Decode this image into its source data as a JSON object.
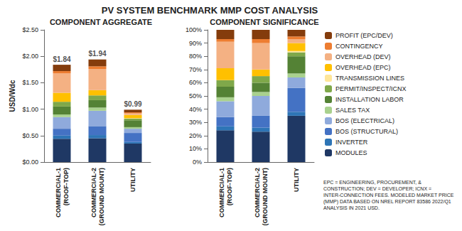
{
  "title": "PV SYSTEM BENCHMARK MMP COST ANALYSIS",
  "note": "EPC = ENGINEERING, PROCUREMENT, & CONSTRUCTION; DEV = DEVELOPER; ICNX = INTER-CONNECTION FEES. MODELED MARKET PRICE (MMP) DATA BASED ON NREL REPORT 83586 2022/Q1 ANALYSIS IN 2021 USD.",
  "chart_data": [
    {
      "type": "bar",
      "title": "COMPONENT AGGREGATE",
      "y_label": "USD/Wdc",
      "stacked": true,
      "grid": false,
      "legend": "right",
      "categories": [
        "COMMERCIAL-1 (ROOF-TOP)",
        "COMMERCIAL-2 (GROUND MOUNT)",
        "UTILITY"
      ],
      "ylim": [
        0,
        2.5
      ],
      "yticks": [
        {
          "value": 0,
          "label": "$0.00"
        },
        {
          "value": 0.5,
          "label": "$0.50"
        },
        {
          "value": 1,
          "label": "$1.00"
        },
        {
          "value": 1.5,
          "label": "$1.50"
        },
        {
          "value": 2,
          "label": "$2.00"
        },
        {
          "value": 2.5,
          "label": "$2.50"
        }
      ],
      "totals": [
        1.84,
        1.94,
        0.99
      ],
      "total_labels": [
        "$1.84",
        "$1.94",
        "$0.99"
      ],
      "series": [
        {
          "name": "MODULES",
          "color": "#1f3864",
          "values": [
            0.44,
            0.45,
            0.35
          ]
        },
        {
          "name": "INVERTER",
          "color": "#2e75b6",
          "values": [
            0.06,
            0.06,
            0.03
          ]
        },
        {
          "name": "BOS (STRUCTURAL)",
          "color": "#4472c4",
          "values": [
            0.13,
            0.17,
            0.17
          ]
        },
        {
          "name": "BOS (ELECTRICAL)",
          "color": "#8faadc",
          "values": [
            0.22,
            0.29,
            0.08
          ]
        },
        {
          "name": "SALES TAX",
          "color": "#a9d18e",
          "values": [
            0.05,
            0.06,
            0.03
          ]
        },
        {
          "name": "INSTALLATION LABOR",
          "color": "#548235",
          "values": [
            0.15,
            0.14,
            0.13
          ]
        },
        {
          "name": "PERMIT/INSPECT/ICNX",
          "color": "#7fa84a",
          "values": [
            0.09,
            0.09,
            0.03
          ]
        },
        {
          "name": "TRANSMISSION LINES",
          "color": "#ffe699",
          "values": [
            0,
            0,
            0.01
          ]
        },
        {
          "name": "OVERHEAD (EPC)",
          "color": "#ffc000",
          "values": [
            0.17,
            0.1,
            0.06
          ]
        },
        {
          "name": "OVERHEAD (DEV)",
          "color": "#f4b183",
          "values": [
            0.37,
            0.4,
            0.03
          ]
        },
        {
          "name": "CONTINGENCY",
          "color": "#ed7d31",
          "values": [
            0.04,
            0.05,
            0.02
          ]
        },
        {
          "name": "PROFIT (EPC/DEV)",
          "color": "#843c0c",
          "values": [
            0.12,
            0.13,
            0.05
          ]
        }
      ]
    },
    {
      "type": "bar",
      "title": "COMPONENT SIGNIFICANCE",
      "stacked": true,
      "grid": false,
      "legend": "right",
      "categories": [
        "COMMERCIAL-1 (ROOF-TOP)",
        "COMMERCIAL-2 (GROUND MOUNT)",
        "UTILITY"
      ],
      "ylim": [
        0,
        100
      ],
      "yticks": [
        {
          "value": 0,
          "label": "0%"
        },
        {
          "value": 10,
          "label": "10%"
        },
        {
          "value": 20,
          "label": "20%"
        },
        {
          "value": 30,
          "label": "30%"
        },
        {
          "value": 40,
          "label": "40%"
        },
        {
          "value": 50,
          "label": "50%"
        },
        {
          "value": 60,
          "label": "60%"
        },
        {
          "value": 70,
          "label": "70%"
        },
        {
          "value": 80,
          "label": "80%"
        },
        {
          "value": 90,
          "label": "90%"
        },
        {
          "value": 100,
          "label": "100%"
        }
      ],
      "series": [
        {
          "name": "MODULES",
          "color": "#1f3864",
          "values": [
            24,
            23,
            35
          ]
        },
        {
          "name": "INVERTER",
          "color": "#2e75b6",
          "values": [
            3,
            3,
            3
          ]
        },
        {
          "name": "BOS (STRUCTURAL)",
          "color": "#4472c4",
          "values": [
            7,
            9,
            18
          ]
        },
        {
          "name": "BOS (ELECTRICAL)",
          "color": "#8faadc",
          "values": [
            12,
            15,
            8
          ]
        },
        {
          "name": "SALES TAX",
          "color": "#a9d18e",
          "values": [
            3,
            3,
            3
          ]
        },
        {
          "name": "INSTALLATION LABOR",
          "color": "#548235",
          "values": [
            8,
            7,
            13
          ]
        },
        {
          "name": "PERMIT/INSPECT/ICNX",
          "color": "#7fa84a",
          "values": [
            5,
            5,
            3
          ]
        },
        {
          "name": "TRANSMISSION LINES",
          "color": "#ffe699",
          "values": [
            0,
            0,
            1
          ]
        },
        {
          "name": "OVERHEAD (EPC)",
          "color": "#ffc000",
          "values": [
            9,
            5,
            6
          ]
        },
        {
          "name": "OVERHEAD (DEV)",
          "color": "#f4b183",
          "values": [
            20,
            20,
            3
          ]
        },
        {
          "name": "CONTINGENCY",
          "color": "#ed7d31",
          "values": [
            2,
            3,
            2
          ]
        },
        {
          "name": "PROFIT (EPC/DEV)",
          "color": "#843c0c",
          "values": [
            7,
            7,
            5
          ]
        }
      ]
    }
  ]
}
